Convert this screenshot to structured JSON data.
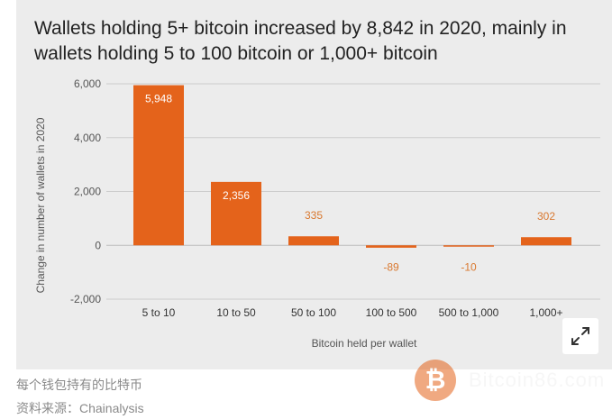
{
  "title": "Wallets holding 5+ bitcoin increased by 8,842 in 2020, mainly in wallets holding 5 to 100 bitcoin or 1,000+ bitcoin",
  "captions": {
    "line1": "每个钱包持有的比特币",
    "line2": "资料来源：Chainalysis"
  },
  "watermark": {
    "logo_glyph": "₿",
    "text": "Bitcoin86.com"
  },
  "expand_icon": "expand-arrows-icon",
  "colors": {
    "bar": "#e4631b",
    "bar_label_inside": "#ffffff",
    "bar_label_outside": "#d9782f",
    "panel_bg": "#ececec",
    "gridline": "#cccccc",
    "axis_text": "#555555"
  },
  "chart_data": {
    "type": "bar",
    "categories": [
      "5 to 10",
      "10 to 50",
      "50 to 100",
      "100 to 500",
      "500 to 1,000",
      "1,000+"
    ],
    "values": [
      5948,
      2356,
      335,
      -89,
      -10,
      302
    ],
    "data_labels": [
      "5,948",
      "2,356",
      "335",
      "-89",
      "-10",
      "302"
    ],
    "xlabel": "Bitcoin held per wallet",
    "ylabel": "Change in number of wallets in 2020",
    "ylim": [
      -2000,
      6000
    ],
    "yticks": [
      -2000,
      0,
      2000,
      4000,
      6000
    ],
    "ytick_labels": [
      "-2,000",
      "0",
      "2,000",
      "4,000",
      "6,000"
    ],
    "grid": true,
    "legend": "none"
  }
}
